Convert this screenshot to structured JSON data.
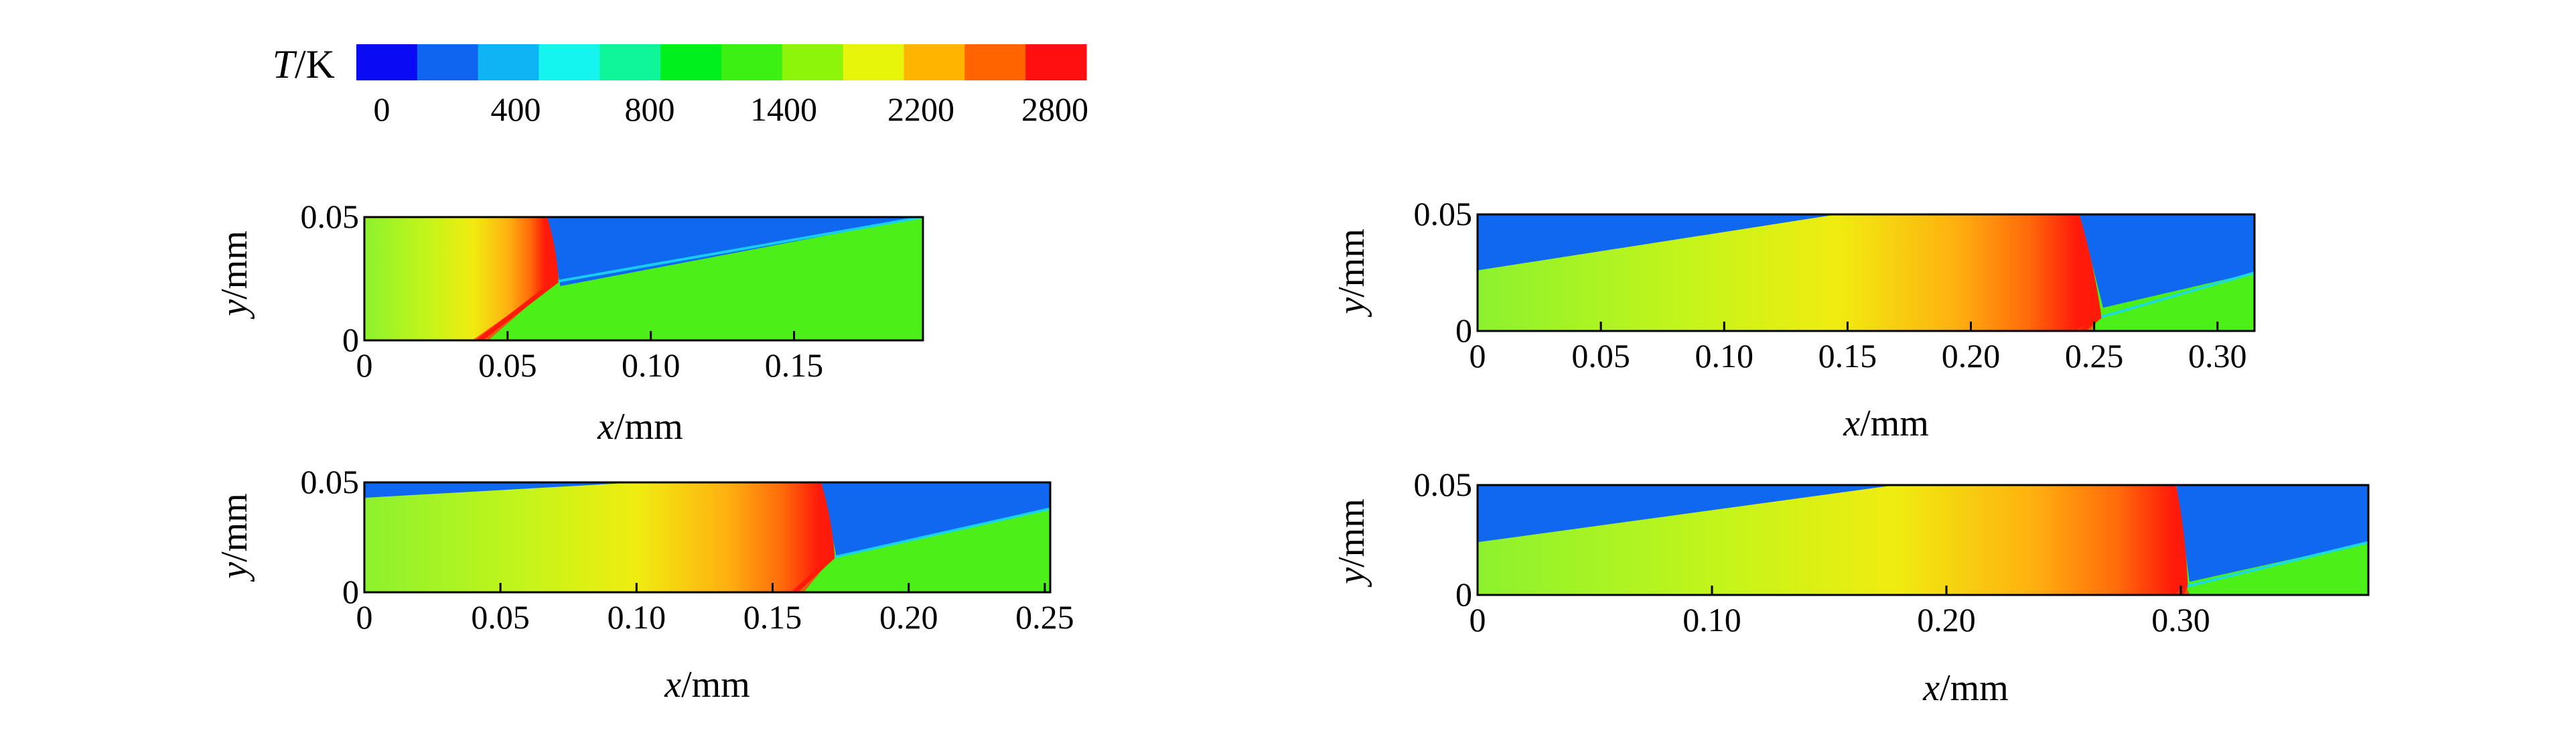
{
  "colorbar": {
    "label_symbol": "T",
    "label_unit": "/K",
    "colors": [
      "#0a0af5",
      "#0f64f0",
      "#0fb4f5",
      "#14f5f0",
      "#0ff59a",
      "#00f01e",
      "#3cf014",
      "#8cf50a",
      "#e6f50a",
      "#ffb400",
      "#ff6400",
      "#ff0f0f"
    ],
    "ticks": [
      "0",
      "400",
      "800",
      "1400",
      "2200",
      "2800"
    ]
  },
  "chart_data": [
    {
      "type": "heatmap",
      "xlabel_symbol": "x",
      "xlabel_unit": "/mm",
      "ylabel_symbol": "y",
      "ylabel_unit": "/mm",
      "xlim": [
        0,
        0.195
      ],
      "ylim": [
        0,
        0.05
      ],
      "xticks": [
        {
          "v": 0,
          "label": "0"
        },
        {
          "v": 0.05,
          "label": "0.05"
        },
        {
          "v": 0.1,
          "label": "0.10"
        },
        {
          "v": 0.15,
          "label": "0.15"
        }
      ],
      "yticks": [
        {
          "v": 0,
          "label": "0"
        },
        {
          "v": 0.05,
          "label": "0.05"
        }
      ],
      "front_x_top": 0.063,
      "front_x_bottom": 0.067,
      "triple_point_y": 0.024,
      "incident_x_at_wall": 0.04,
      "left_contact_y_start": 0.05,
      "left_contact_y_end": 0.05,
      "right_contact_y_near": 0.022,
      "right_contact_y_far": 0.05,
      "peak_temperature_K": 2800
    },
    {
      "type": "heatmap",
      "xlabel_symbol": "x",
      "xlabel_unit": "/mm",
      "ylabel_symbol": "y",
      "ylabel_unit": "/mm",
      "xlim": [
        0,
        0.315
      ],
      "ylim": [
        0,
        0.05
      ],
      "xticks": [
        {
          "v": 0,
          "label": "0"
        },
        {
          "v": 0.05,
          "label": "0.05"
        },
        {
          "v": 0.1,
          "label": "0.10"
        },
        {
          "v": 0.15,
          "label": "0.15"
        },
        {
          "v": 0.2,
          "label": "0.20"
        },
        {
          "v": 0.25,
          "label": "0.25"
        },
        {
          "v": 0.3,
          "label": "0.30"
        }
      ],
      "yticks": [
        {
          "v": 0,
          "label": "0"
        },
        {
          "v": 0.05,
          "label": "0.05"
        }
      ],
      "front_x_top": 0.243,
      "front_x_bottom": 0.252,
      "triple_point_y": 0.006,
      "incident_x_at_wall": 0.245,
      "left_contact_y_start": 0.026,
      "left_contact_y_end": 0.05,
      "right_contact_y_near": 0.01,
      "right_contact_y_far": 0.025,
      "peak_temperature_K": 2800
    },
    {
      "type": "heatmap",
      "xlabel_symbol": "x",
      "xlabel_unit": "/mm",
      "ylabel_symbol": "y",
      "ylabel_unit": "/mm",
      "xlim": [
        0,
        0.252
      ],
      "ylim": [
        0,
        0.05
      ],
      "xticks": [
        {
          "v": 0,
          "label": "0"
        },
        {
          "v": 0.05,
          "label": "0.05"
        },
        {
          "v": 0.1,
          "label": "0.10"
        },
        {
          "v": 0.15,
          "label": "0.15"
        },
        {
          "v": 0.2,
          "label": "0.20"
        },
        {
          "v": 0.25,
          "label": "0.25"
        }
      ],
      "yticks": [
        {
          "v": 0,
          "label": "0"
        },
        {
          "v": 0.05,
          "label": "0.05"
        }
      ],
      "front_x_top": 0.167,
      "front_x_bottom": 0.172,
      "triple_point_y": 0.016,
      "incident_x_at_wall": 0.158,
      "left_contact_y_start": 0.043,
      "left_contact_y_end": 0.05,
      "right_contact_y_near": 0.016,
      "right_contact_y_far": 0.038,
      "peak_temperature_K": 2800
    },
    {
      "type": "heatmap",
      "xlabel_symbol": "x",
      "xlabel_unit": "/mm",
      "ylabel_symbol": "y",
      "ylabel_unit": "/mm",
      "xlim": [
        0,
        0.38
      ],
      "ylim": [
        0,
        0.05
      ],
      "xticks": [
        {
          "v": 0,
          "label": "0"
        },
        {
          "v": 0.1,
          "label": "0.10"
        },
        {
          "v": 0.2,
          "label": "0.20"
        },
        {
          "v": 0.3,
          "label": "0.30"
        }
      ],
      "yticks": [
        {
          "v": 0,
          "label": "0"
        },
        {
          "v": 0.05,
          "label": "0.05"
        }
      ],
      "front_x_top": 0.297,
      "front_x_bottom": 0.302,
      "triple_point_y": 0.004,
      "incident_x_at_wall": 0.3,
      "left_contact_y_start": 0.024,
      "left_contact_y_end": 0.05,
      "right_contact_y_near": 0.006,
      "right_contact_y_far": 0.024,
      "peak_temperature_K": 2800
    }
  ]
}
